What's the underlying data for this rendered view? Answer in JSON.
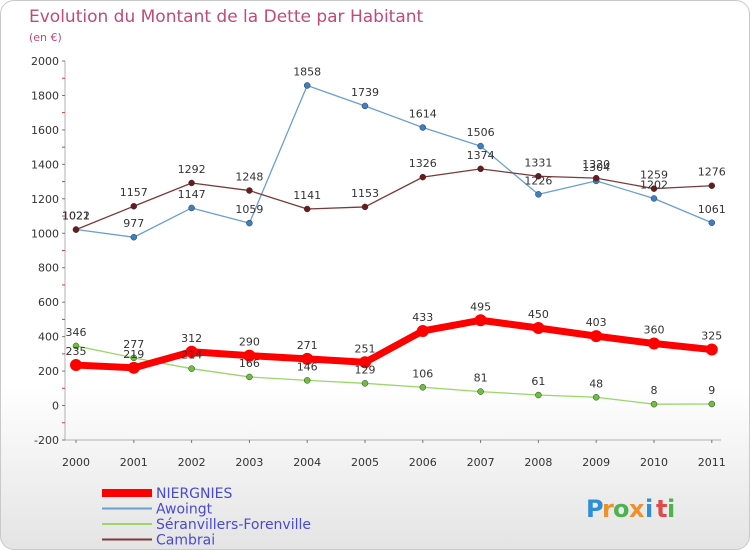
{
  "chart_data": {
    "type": "line",
    "title": "Evolution du Montant de la Dette par Habitant",
    "subtitle": "(en €)",
    "x": [
      "2000",
      "2001",
      "2002",
      "2003",
      "2004",
      "2005",
      "2006",
      "2007",
      "2008",
      "2009",
      "2010",
      "2011"
    ],
    "ylim": [
      -200,
      2000
    ],
    "yticks": [
      -200,
      0,
      200,
      400,
      600,
      800,
      1000,
      1200,
      1400,
      1600,
      1800,
      2000
    ],
    "grid": false,
    "legend_position": "bottom-left",
    "series": [
      {
        "name": "NIERGNIES",
        "color": "#ff0000",
        "marker_color": "#ff0000",
        "values": [
          235,
          219,
          312,
          290,
          271,
          251,
          433,
          495,
          450,
          403,
          360,
          325
        ]
      },
      {
        "name": "Awoingt",
        "color": "#6a9fd0",
        "marker_color": "#3b7fc4",
        "values": [
          1022,
          977,
          1147,
          1059,
          1858,
          1739,
          1614,
          1506,
          1226,
          1304,
          1202,
          1061
        ]
      },
      {
        "name": "Séranvillers-Forenville",
        "color": "#9ad66a",
        "marker_color": "#6cc13a",
        "values": [
          346,
          277,
          214,
          166,
          146,
          129,
          106,
          81,
          61,
          48,
          8,
          9
        ]
      },
      {
        "name": "Cambrai",
        "color": "#7a3a3a",
        "marker_color": "#6a1a1a",
        "values": [
          1021,
          1157,
          1292,
          1248,
          1141,
          1153,
          1326,
          1374,
          1331,
          1320,
          1259,
          1276
        ]
      }
    ]
  },
  "logo": {
    "letters": [
      "P",
      "r",
      "o",
      "x",
      "i",
      "t",
      "i"
    ],
    "colors": [
      "#2f8fd6",
      "#f0902a",
      "#4fb24f",
      "#f0902a",
      "#2f8fd6",
      "#e04a4a",
      "#4fb24f"
    ]
  }
}
